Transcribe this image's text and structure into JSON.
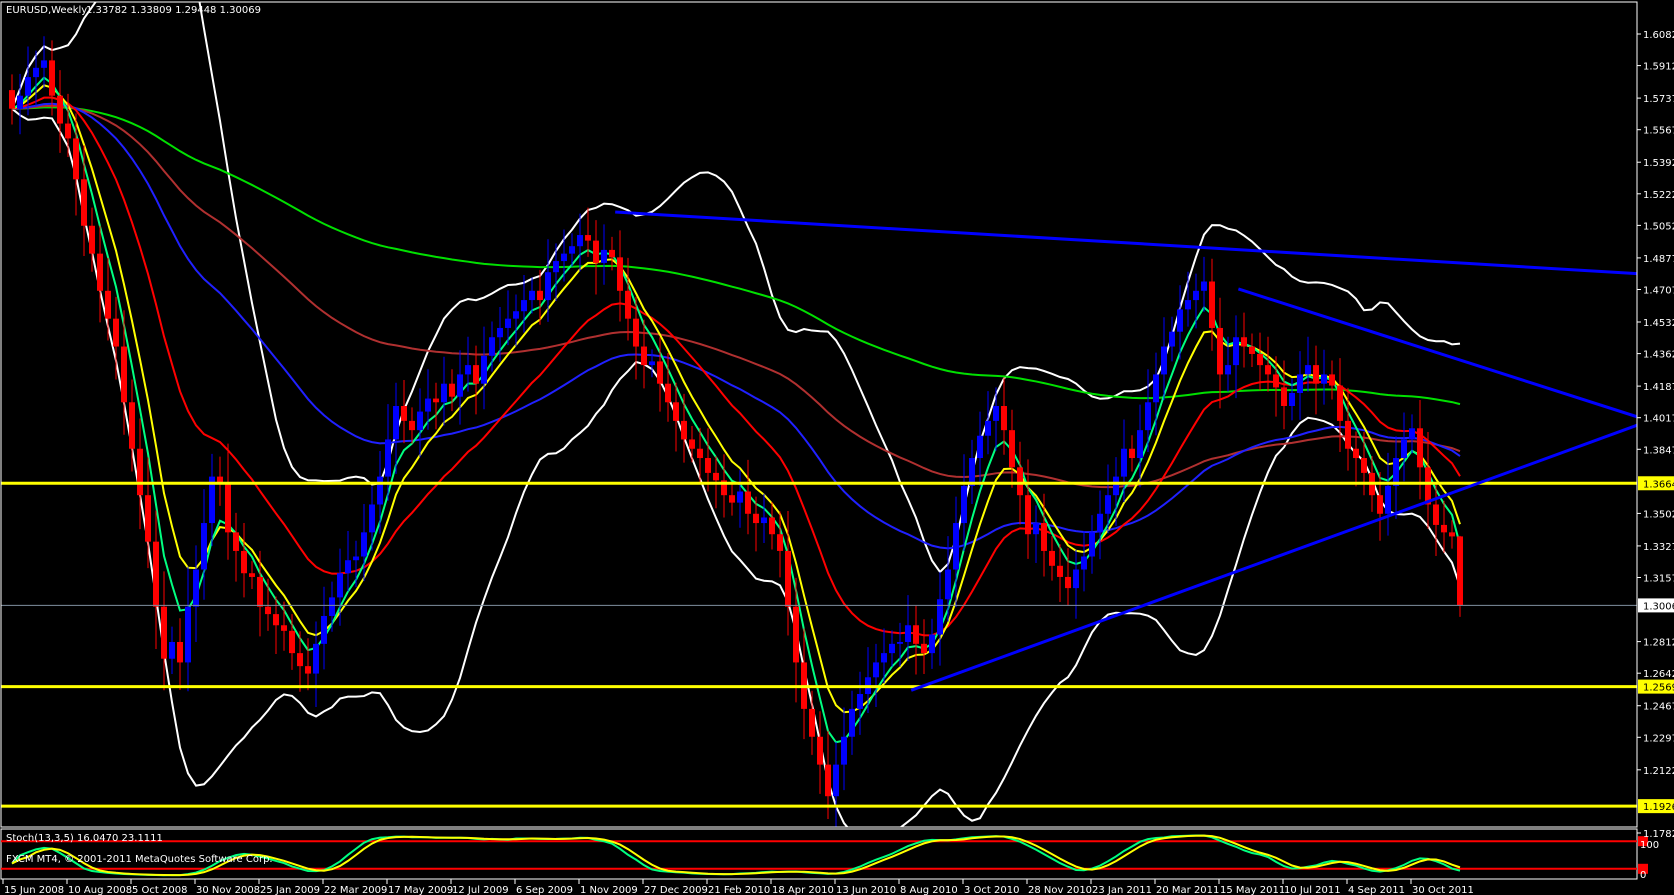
{
  "header": {
    "symbol_timeframe": "EURUSD,Weekly",
    "ohlc": "1.33782 1.33809 1.29448 1.30069"
  },
  "footer": {
    "stoch_label": "Stoch(13,3,5) 16.0470 23.1111",
    "copyright": "FXCM MT4, © 2001-2011 MetaQuotes Software Corp."
  },
  "colors": {
    "background": "#000000",
    "bull": "#0000ff",
    "bear": "#ff0000",
    "axis": "#ffffff",
    "levels": "#ffff00",
    "trendlines": "#0000ff",
    "bollinger": "#ffffff",
    "stoch_main": "#00ff7f",
    "stoch_signal": "#ffff00",
    "stoch_levels": "#ff0000"
  },
  "chart_data": {
    "type": "candlestick",
    "timeframe": "Weekly",
    "symbol": "EURUSD",
    "x_tick_labels": [
      "15 Jun 2008",
      "10 Aug 2008",
      "5 Oct 2008",
      "30 Nov 2008",
      "25 Jan 2009",
      "22 Mar 2009",
      "17 May 2009",
      "12 Jul 2009",
      "6 Sep 2009",
      "1 Nov 2009",
      "27 Dec 2009",
      "21 Feb 2010",
      "18 Apr 2010",
      "13 Jun 2010",
      "8 Aug 2010",
      "3 Oct 2010",
      "28 Nov 2010",
      "23 Jan 2011",
      "20 Mar 2011",
      "15 May 2011",
      "10 Jul 2011",
      "4 Sep 2011",
      "30 Oct 2011"
    ],
    "y_tick_labels": [
      "1.60820",
      "1.59120",
      "1.57370",
      "1.55670",
      "1.53920",
      "1.52220",
      "1.50520",
      "1.48770",
      "1.47070",
      "1.45320",
      "1.43620",
      "1.41870",
      "1.40170",
      "1.38470",
      "1.35020",
      "1.33270",
      "1.31570",
      "1.28120",
      "1.26420",
      "1.24670",
      "1.22970",
      "1.21220",
      "1.17820"
    ],
    "ylim": [
      1.1782,
      1.6082
    ],
    "closes": [
      1.568,
      1.575,
      1.585,
      1.59,
      1.594,
      1.575,
      1.56,
      1.552,
      1.53,
      1.505,
      1.49,
      1.47,
      1.455,
      1.44,
      1.41,
      1.385,
      1.36,
      1.335,
      1.3,
      1.272,
      1.281,
      1.27,
      1.3,
      1.32,
      1.345,
      1.37,
      1.367,
      1.34,
      1.33,
      1.318,
      1.316,
      1.3,
      1.296,
      1.29,
      1.287,
      1.275,
      1.268,
      1.264,
      1.28,
      1.295,
      1.305,
      1.318,
      1.325,
      1.327,
      1.34,
      1.355,
      1.37,
      1.39,
      1.408,
      1.4,
      1.395,
      1.405,
      1.412,
      1.41,
      1.42,
      1.413,
      1.425,
      1.43,
      1.42,
      1.435,
      1.445,
      1.45,
      1.455,
      1.459,
      1.465,
      1.47,
      1.465,
      1.48,
      1.486,
      1.49,
      1.494,
      1.5,
      1.497,
      1.485,
      1.492,
      1.488,
      1.47,
      1.455,
      1.44,
      1.43,
      1.432,
      1.42,
      1.41,
      1.4,
      1.39,
      1.385,
      1.38,
      1.372,
      1.368,
      1.36,
      1.356,
      1.362,
      1.35,
      1.345,
      1.348,
      1.339,
      1.33,
      1.3,
      1.27,
      1.245,
      1.23,
      1.215,
      1.198,
      1.215,
      1.23,
      1.245,
      1.253,
      1.262,
      1.27,
      1.275,
      1.28,
      1.281,
      1.29,
      1.28,
      1.275,
      1.285,
      1.304,
      1.32,
      1.345,
      1.365,
      1.38,
      1.392,
      1.4,
      1.408,
      1.395,
      1.375,
      1.36,
      1.339,
      1.345,
      1.33,
      1.322,
      1.316,
      1.31,
      1.32,
      1.327,
      1.34,
      1.35,
      1.36,
      1.37,
      1.385,
      1.38,
      1.395,
      1.41,
      1.425,
      1.44,
      1.448,
      1.46,
      1.465,
      1.47,
      1.475,
      1.45,
      1.425,
      1.43,
      1.445,
      1.44,
      1.436,
      1.43,
      1.425,
      1.418,
      1.408,
      1.415,
      1.425,
      1.43,
      1.42,
      1.425,
      1.419,
      1.4,
      1.385,
      1.38,
      1.372,
      1.36,
      1.35,
      1.365,
      1.38,
      1.39,
      1.396,
      1.375,
      1.355,
      1.344,
      1.34,
      1.33782,
      1.30069
    ],
    "last_bar": {
      "open": 1.33782,
      "high": 1.33809,
      "low": 1.29448,
      "close": 1.30069
    },
    "current_price": {
      "value": 1.30069,
      "label": "1.30069"
    },
    "horizontal_levels": [
      {
        "value": 1.36642,
        "label": "1.36642"
      },
      {
        "value": 1.25698,
        "label": "1.25698"
      },
      {
        "value": 1.19266,
        "label": "1.19266"
      }
    ],
    "trendlines": [
      {
        "from": {
          "bar": 75.4,
          "price": 1.5124
        },
        "to": {
          "bar": 204,
          "price": 1.479
        }
      },
      {
        "from": {
          "bar": 153.3,
          "price": 1.471
        },
        "to": {
          "bar": 204,
          "price": 1.401
        }
      },
      {
        "from": {
          "bar": 112.4,
          "price": 1.255
        },
        "to": {
          "bar": 204,
          "price": 1.399
        }
      }
    ],
    "moving_averages": [
      {
        "period": 5,
        "color": "#00ff80"
      },
      {
        "period": 8,
        "color": "#ffff00"
      },
      {
        "period": 21,
        "color": "#ff0000"
      },
      {
        "period": 55,
        "color": "#2020ff"
      },
      {
        "period": 100,
        "color": "#b03030"
      },
      {
        "period": 200,
        "color": "#00e000"
      }
    ],
    "bollinger": {
      "period": 20,
      "deviation": 2
    },
    "stochastic": {
      "k": 13,
      "d": 3,
      "slowing": 5,
      "main": 16.047,
      "signal": 23.1111,
      "levels": [
        80,
        20
      ],
      "scale_labels": [
        "100",
        "0"
      ]
    }
  }
}
